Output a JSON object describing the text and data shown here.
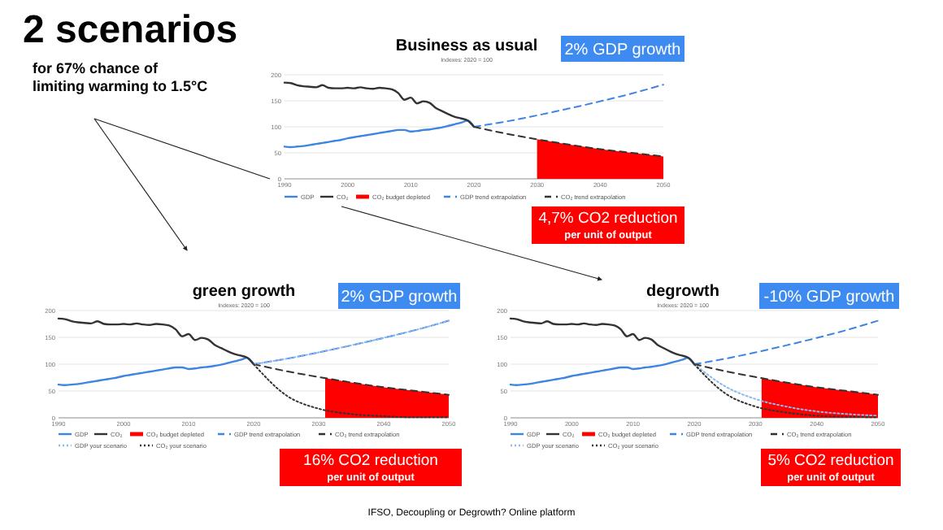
{
  "chart_data": [
    {
      "type": "other",
      "title": "2 scenarios",
      "subtitle": "for 67% chance of limiting warming to 1.5°C",
      "annotations": [
        "IFSO, Decoupling or Degrowth? Online platform"
      ]
    },
    {
      "type": "line",
      "title": "Business as usual",
      "subtitle": "Indexes: 2020 = 100",
      "xlim": [
        1990,
        2050
      ],
      "xticks": [
        1990,
        2000,
        2010,
        2020,
        2030,
        2040,
        2050
      ],
      "ylim": [
        0,
        200
      ],
      "yticks": [
        0,
        50,
        100,
        150,
        200
      ],
      "grid": "y",
      "legend": "bottom",
      "annotations": [
        "2% GDP growth",
        "4,7% CO2 reduction",
        "per unit of output"
      ],
      "series": [
        {
          "name": "GDP",
          "color": "#3d85e0",
          "type": "line",
          "line_style": "solid",
          "x": [
            1990,
            1991,
            1992,
            1993,
            1994,
            1995,
            1996,
            1997,
            1998,
            1999,
            2000,
            2001,
            2002,
            2003,
            2004,
            2005,
            2006,
            2007,
            2008,
            2009,
            2010,
            2011,
            2012,
            2013,
            2014,
            2015,
            2016,
            2017,
            2018,
            2019,
            2020
          ],
          "values": [
            62,
            61,
            62,
            63,
            65,
            67,
            69,
            71,
            73,
            75,
            78,
            80,
            82,
            84,
            86,
            88,
            90,
            92,
            94,
            94,
            91,
            92,
            94,
            95,
            97,
            99,
            102,
            105,
            108,
            112,
            100
          ]
        },
        {
          "name": "CO₂",
          "color": "#333333",
          "type": "line",
          "line_style": "solid",
          "x": [
            1990,
            1991,
            1992,
            1993,
            1994,
            1995,
            1996,
            1997,
            1998,
            1999,
            2000,
            2001,
            2002,
            2003,
            2004,
            2005,
            2006,
            2007,
            2008,
            2009,
            2010,
            2011,
            2012,
            2013,
            2014,
            2015,
            2016,
            2017,
            2018,
            2019,
            2020
          ],
          "values": [
            185,
            184,
            180,
            178,
            177,
            176,
            180,
            175,
            174,
            174,
            175,
            174,
            176,
            174,
            173,
            175,
            174,
            172,
            165,
            152,
            156,
            145,
            149,
            146,
            136,
            130,
            124,
            119,
            116,
            112,
            100
          ]
        },
        {
          "name": "CO₂ budget depleted",
          "color": "#ff0000",
          "type": "area",
          "x": [
            2030,
            2035,
            2040,
            2045,
            2050
          ],
          "values": [
            76,
            66,
            57,
            50,
            43
          ]
        },
        {
          "name": "GDP trend extrapolation",
          "color": "#3d85e0",
          "type": "line",
          "line_style": "dashed",
          "x": [
            2020,
            2025,
            2030,
            2035,
            2040,
            2045,
            2050
          ],
          "values": [
            100,
            110,
            122,
            135,
            149,
            164,
            181
          ]
        },
        {
          "name": "CO₂ trend extrapolation",
          "color": "#333333",
          "type": "line",
          "line_style": "dashed",
          "x": [
            2020,
            2025,
            2030,
            2035,
            2040,
            2045,
            2050
          ],
          "values": [
            100,
            87,
            76,
            66,
            57,
            50,
            43
          ]
        }
      ]
    },
    {
      "type": "line",
      "title": "green growth",
      "subtitle": "Indexes: 2020 = 100",
      "xlim": [
        1990,
        2050
      ],
      "xticks": [
        1990,
        2000,
        2010,
        2020,
        2030,
        2040,
        2050
      ],
      "ylim": [
        0,
        200
      ],
      "yticks": [
        0,
        50,
        100,
        150,
        200
      ],
      "grid": "y",
      "legend": "bottom",
      "annotations": [
        "2% GDP growth",
        "16% CO2 reduction",
        "per unit of output"
      ],
      "series": [
        {
          "name": "GDP",
          "color": "#3d85e0",
          "type": "line",
          "line_style": "solid",
          "x": [
            1990,
            1991,
            1992,
            1993,
            1994,
            1995,
            1996,
            1997,
            1998,
            1999,
            2000,
            2001,
            2002,
            2003,
            2004,
            2005,
            2006,
            2007,
            2008,
            2009,
            2010,
            2011,
            2012,
            2013,
            2014,
            2015,
            2016,
            2017,
            2018,
            2019,
            2020
          ],
          "values": [
            62,
            61,
            62,
            63,
            65,
            67,
            69,
            71,
            73,
            75,
            78,
            80,
            82,
            84,
            86,
            88,
            90,
            92,
            94,
            94,
            91,
            92,
            94,
            95,
            97,
            99,
            102,
            105,
            108,
            112,
            100
          ]
        },
        {
          "name": "CO₂",
          "color": "#333333",
          "type": "line",
          "line_style": "solid",
          "x": [
            1990,
            1991,
            1992,
            1993,
            1994,
            1995,
            1996,
            1997,
            1998,
            1999,
            2000,
            2001,
            2002,
            2003,
            2004,
            2005,
            2006,
            2007,
            2008,
            2009,
            2010,
            2011,
            2012,
            2013,
            2014,
            2015,
            2016,
            2017,
            2018,
            2019,
            2020
          ],
          "values": [
            185,
            184,
            180,
            178,
            177,
            176,
            180,
            175,
            174,
            174,
            175,
            174,
            176,
            174,
            173,
            175,
            174,
            172,
            165,
            152,
            156,
            145,
            149,
            146,
            136,
            130,
            124,
            119,
            116,
            112,
            100
          ]
        },
        {
          "name": "CO₂ budget depleted",
          "color": "#ff0000",
          "type": "area",
          "x": [
            2031,
            2035,
            2040,
            2045,
            2050
          ],
          "values": [
            74,
            66,
            57,
            50,
            43
          ]
        },
        {
          "name": "GDP trend extrapolation",
          "color": "#3d85e0",
          "type": "line",
          "line_style": "dashed",
          "x": [
            2020,
            2025,
            2030,
            2035,
            2040,
            2045,
            2050
          ],
          "values": [
            100,
            110,
            122,
            135,
            149,
            164,
            181
          ]
        },
        {
          "name": "CO₂ trend extrapolation",
          "color": "#333333",
          "type": "line",
          "line_style": "dashed",
          "x": [
            2020,
            2025,
            2030,
            2035,
            2040,
            2045,
            2050
          ],
          "values": [
            100,
            87,
            76,
            66,
            57,
            50,
            43
          ]
        },
        {
          "name": "GDP your scenario",
          "color": "#8ab8f0",
          "type": "line",
          "line_style": "dotted",
          "x": [
            2020,
            2025,
            2030,
            2035,
            2040,
            2045,
            2050
          ],
          "values": [
            100,
            110,
            122,
            135,
            149,
            164,
            181
          ]
        },
        {
          "name": "CO₂ your scenario",
          "color": "#333333",
          "type": "line",
          "line_style": "dotted",
          "x": [
            2020,
            2025,
            2030,
            2035,
            2040,
            2045,
            2050
          ],
          "values": [
            100,
            42,
            17,
            7,
            3,
            1,
            1
          ]
        }
      ]
    },
    {
      "type": "line",
      "title": "degrowth",
      "subtitle": "Indexes: 2020 = 100",
      "xlim": [
        1990,
        2050
      ],
      "xticks": [
        1990,
        2000,
        2010,
        2020,
        2030,
        2040,
        2050
      ],
      "ylim": [
        0,
        200
      ],
      "yticks": [
        0,
        50,
        100,
        150,
        200
      ],
      "grid": "y",
      "legend": "bottom",
      "annotations": [
        "-10% GDP growth",
        "5% CO2 reduction",
        "per unit of output"
      ],
      "series": [
        {
          "name": "GDP",
          "color": "#3d85e0",
          "type": "line",
          "line_style": "solid",
          "x": [
            1990,
            1991,
            1992,
            1993,
            1994,
            1995,
            1996,
            1997,
            1998,
            1999,
            2000,
            2001,
            2002,
            2003,
            2004,
            2005,
            2006,
            2007,
            2008,
            2009,
            2010,
            2011,
            2012,
            2013,
            2014,
            2015,
            2016,
            2017,
            2018,
            2019,
            2020
          ],
          "values": [
            62,
            61,
            62,
            63,
            65,
            67,
            69,
            71,
            73,
            75,
            78,
            80,
            82,
            84,
            86,
            88,
            90,
            92,
            94,
            94,
            91,
            92,
            94,
            95,
            97,
            99,
            102,
            105,
            108,
            112,
            100
          ]
        },
        {
          "name": "CO₂",
          "color": "#333333",
          "type": "line",
          "line_style": "solid",
          "x": [
            1990,
            1991,
            1992,
            1993,
            1994,
            1995,
            1996,
            1997,
            1998,
            1999,
            2000,
            2001,
            2002,
            2003,
            2004,
            2005,
            2006,
            2007,
            2008,
            2009,
            2010,
            2011,
            2012,
            2013,
            2014,
            2015,
            2016,
            2017,
            2018,
            2019,
            2020
          ],
          "values": [
            185,
            184,
            180,
            178,
            177,
            176,
            180,
            175,
            174,
            174,
            175,
            174,
            176,
            174,
            173,
            175,
            174,
            172,
            165,
            152,
            156,
            145,
            149,
            146,
            136,
            130,
            124,
            119,
            116,
            112,
            100
          ]
        },
        {
          "name": "CO₂ budget depleted",
          "color": "#ff0000",
          "type": "area",
          "x": [
            2031,
            2035,
            2040,
            2045,
            2050
          ],
          "values": [
            74,
            66,
            57,
            50,
            43
          ]
        },
        {
          "name": "GDP trend extrapolation",
          "color": "#3d85e0",
          "type": "line",
          "line_style": "dashed",
          "x": [
            2020,
            2025,
            2030,
            2035,
            2040,
            2045,
            2050
          ],
          "values": [
            100,
            110,
            122,
            135,
            149,
            164,
            181
          ]
        },
        {
          "name": "CO₂ trend extrapolation",
          "color": "#333333",
          "type": "line",
          "line_style": "dashed",
          "x": [
            2020,
            2025,
            2030,
            2035,
            2040,
            2045,
            2050
          ],
          "values": [
            100,
            87,
            76,
            66,
            57,
            50,
            43
          ]
        },
        {
          "name": "GDP your scenario",
          "color": "#8ab8f0",
          "type": "line",
          "line_style": "dotted",
          "x": [
            2020,
            2025,
            2030,
            2035,
            2040,
            2045,
            2050
          ],
          "values": [
            100,
            59,
            35,
            21,
            12,
            7,
            4
          ]
        },
        {
          "name": "CO₂ your scenario",
          "color": "#333333",
          "type": "line",
          "line_style": "dotted",
          "x": [
            2020,
            2025,
            2030,
            2035,
            2040,
            2045,
            2050
          ],
          "values": [
            100,
            46,
            21,
            10,
            4,
            2,
            1
          ]
        }
      ]
    }
  ]
}
